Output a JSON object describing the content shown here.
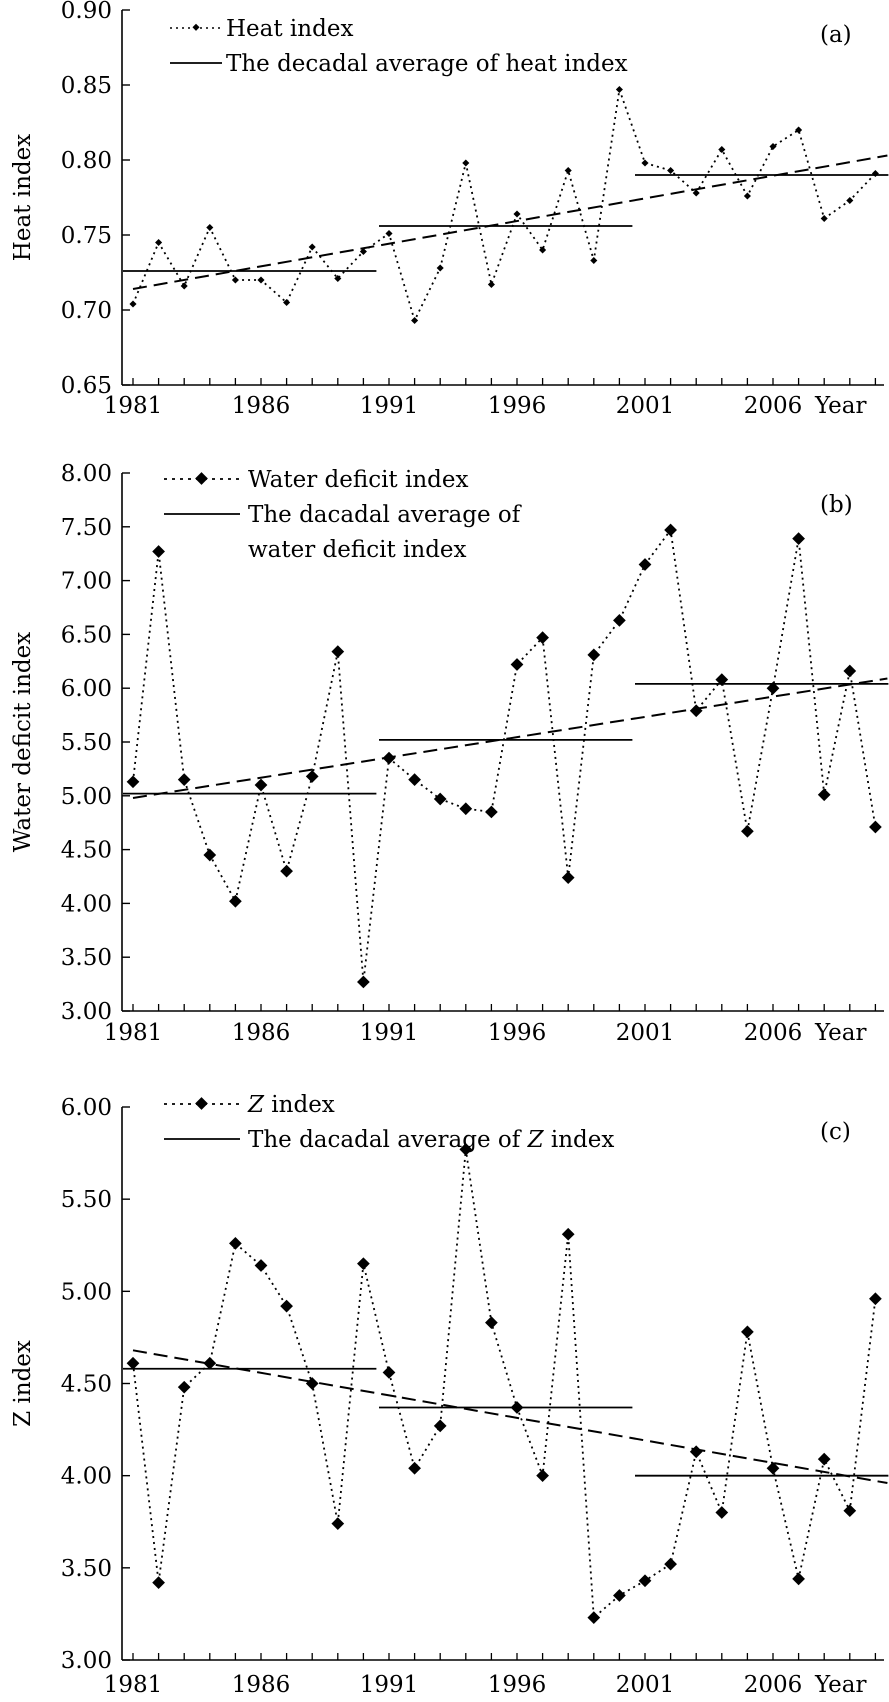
{
  "chart_data": [
    {
      "type": "line",
      "panel": "(a)",
      "ylabel": "Heat index",
      "xlabel": "Year",
      "x": [
        1981,
        1982,
        1983,
        1984,
        1985,
        1986,
        1987,
        1988,
        1989,
        1990,
        1991,
        1992,
        1993,
        1994,
        1995,
        1996,
        1997,
        1998,
        1999,
        2000,
        2001,
        2002,
        2003,
        2004,
        2005,
        2006,
        2007,
        2008,
        2009,
        2010
      ],
      "xticks": [
        "1981",
        "1986",
        "1991",
        "1996",
        "2001",
        "2006"
      ],
      "ylim": [
        0.65,
        0.9
      ],
      "yticks": [
        "0.65",
        "0.70",
        "0.75",
        "0.80",
        "0.85",
        "0.90"
      ],
      "series": [
        {
          "name": "Heat index",
          "style": "dotted-diamond",
          "values": [
            0.704,
            0.745,
            0.716,
            0.755,
            0.72,
            0.72,
            0.705,
            0.742,
            0.721,
            0.739,
            0.751,
            0.693,
            0.728,
            0.798,
            0.717,
            0.764,
            0.74,
            0.793,
            0.733,
            0.847,
            0.798,
            0.793,
            0.778,
            0.807,
            0.776,
            0.809,
            0.82,
            0.761,
            0.773,
            0.791
          ]
        },
        {
          "name": "The decadal average of heat index",
          "style": "solid-steps",
          "segments": [
            {
              "from": 1981,
              "to": 1990,
              "value": 0.726
            },
            {
              "from": 1991,
              "to": 2000,
              "value": 0.756
            },
            {
              "from": 2001,
              "to": 2010,
              "value": 0.79
            }
          ]
        },
        {
          "name": "trend",
          "style": "dashed",
          "from": [
            1981,
            0.714
          ],
          "to": [
            2010,
            0.803
          ]
        }
      ]
    },
    {
      "type": "line",
      "panel": "(b)",
      "ylabel": "Water deficit index",
      "xlabel": "Year",
      "x": [
        1981,
        1982,
        1983,
        1984,
        1985,
        1986,
        1987,
        1988,
        1989,
        1990,
        1991,
        1992,
        1993,
        1994,
        1995,
        1996,
        1997,
        1998,
        1999,
        2000,
        2001,
        2002,
        2003,
        2004,
        2005,
        2006,
        2007,
        2008,
        2009,
        2010
      ],
      "xticks": [
        "1981",
        "1986",
        "1991",
        "1996",
        "2001",
        "2006"
      ],
      "ylim": [
        3.0,
        8.0
      ],
      "yticks": [
        "3.00",
        "3.50",
        "4.00",
        "4.50",
        "5.00",
        "5.50",
        "6.00",
        "6.50",
        "7.00",
        "7.50",
        "8.00"
      ],
      "series": [
        {
          "name": "Water deficit index",
          "style": "dotted-diamond",
          "values": [
            5.13,
            7.27,
            5.15,
            4.45,
            4.02,
            5.1,
            4.3,
            5.18,
            6.34,
            3.27,
            5.35,
            5.15,
            4.97,
            4.88,
            4.85,
            6.22,
            6.47,
            4.24,
            6.31,
            6.63,
            7.15,
            7.47,
            5.79,
            6.08,
            4.67,
            6.0,
            7.39,
            5.01,
            6.16,
            4.71
          ]
        },
        {
          "name": "The dacadal average of water deficit index",
          "style": "solid-steps",
          "segments": [
            {
              "from": 1981,
              "to": 1990,
              "value": 5.02
            },
            {
              "from": 1991,
              "to": 2000,
              "value": 5.52
            },
            {
              "from": 2001,
              "to": 2010,
              "value": 6.04
            }
          ]
        },
        {
          "name": "trend",
          "style": "dashed",
          "from": [
            1981,
            4.98
          ],
          "to": [
            2010,
            6.09
          ]
        }
      ]
    },
    {
      "type": "line",
      "panel": "(c)",
      "ylabel": "Z index",
      "xlabel": "Year",
      "x": [
        1981,
        1982,
        1983,
        1984,
        1985,
        1986,
        1987,
        1988,
        1989,
        1990,
        1991,
        1992,
        1993,
        1994,
        1995,
        1996,
        1997,
        1998,
        1999,
        2000,
        2001,
        2002,
        2003,
        2004,
        2005,
        2006,
        2007,
        2008,
        2009,
        2010
      ],
      "xticks": [
        "1981",
        "1986",
        "1991",
        "1996",
        "2001",
        "2006"
      ],
      "ylim": [
        3.0,
        6.0
      ],
      "yticks": [
        "3.00",
        "3.50",
        "4.00",
        "4.50",
        "5.00",
        "5.50",
        "6.00"
      ],
      "series": [
        {
          "name": "Z index",
          "style": "dotted-diamond",
          "values": [
            4.61,
            3.42,
            4.48,
            4.61,
            5.26,
            5.14,
            4.92,
            4.5,
            3.74,
            5.15,
            4.56,
            4.04,
            4.27,
            5.77,
            4.83,
            4.37,
            4.0,
            5.31,
            3.23,
            3.35,
            3.43,
            3.52,
            4.13,
            3.8,
            4.78,
            4.04,
            3.44,
            4.09,
            3.81,
            4.96
          ]
        },
        {
          "name": "The dacadal average of Z index",
          "style": "solid-steps",
          "segments": [
            {
              "from": 1981,
              "to": 1990,
              "value": 4.58
            },
            {
              "from": 1991,
              "to": 2000,
              "value": 4.37
            },
            {
              "from": 2001,
              "to": 2010,
              "value": 4.0
            }
          ]
        },
        {
          "name": "trend",
          "style": "dashed",
          "from": [
            1981,
            4.68
          ],
          "to": [
            2010,
            3.96
          ]
        }
      ]
    }
  ],
  "legends": [
    {
      "line1": "Heat index",
      "line2": "The decadal average of heat index",
      "line2b": ""
    },
    {
      "line1": "Water deficit index",
      "line2": "The dacadal average of",
      "line2b": "water deficit index"
    },
    {
      "line1_italic": "Z",
      "line1_rest": " index",
      "line2_pre": "The dacadal average of ",
      "line2_italic": "Z",
      "line2_post": " index"
    }
  ]
}
